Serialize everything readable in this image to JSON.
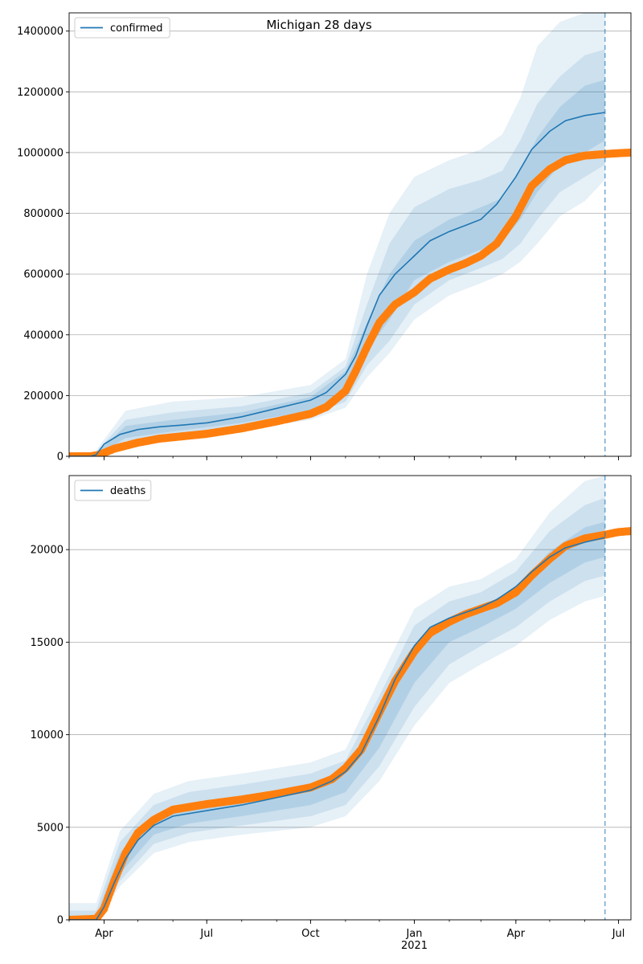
{
  "figure": {
    "title": "Michigan 28 days"
  },
  "chart_data": [
    {
      "type": "line",
      "title": "Michigan 28 days",
      "xlabel": "",
      "ylabel": "",
      "xlim": [
        "2020-03-01",
        "2021-07-12"
      ],
      "ylim": [
        0,
        1460000
      ],
      "yticks": [
        0,
        200000,
        400000,
        600000,
        800000,
        1000000,
        1200000,
        1400000
      ],
      "grid": "y",
      "legend": {
        "placement": "top-left",
        "entries": [
          "confirmed"
        ]
      },
      "forecast_start": "2021-06-19",
      "series": [
        {
          "name": "confirmed",
          "kind": "model",
          "color": "#1f77b4",
          "x": [
            "2020-03-01",
            "2020-03-20",
            "2020-03-25",
            "2020-04-01",
            "2020-04-15",
            "2020-05-01",
            "2020-05-20",
            "2020-06-10",
            "2020-07-01",
            "2020-08-01",
            "2020-09-01",
            "2020-10-01",
            "2020-10-15",
            "2020-11-01",
            "2020-11-10",
            "2020-11-20",
            "2020-12-01",
            "2020-12-15",
            "2021-01-01",
            "2021-01-15",
            "2021-02-01",
            "2021-02-15",
            "2021-03-01",
            "2021-03-15",
            "2021-04-01",
            "2021-04-15",
            "2021-05-01",
            "2021-05-15",
            "2021-06-01",
            "2021-06-19"
          ],
          "y": [
            0,
            0,
            5000,
            40000,
            72000,
            88000,
            97000,
            103000,
            110000,
            130000,
            158000,
            185000,
            210000,
            270000,
            330000,
            430000,
            530000,
            600000,
            660000,
            710000,
            740000,
            760000,
            780000,
            830000,
            920000,
            1010000,
            1070000,
            1105000,
            1122000,
            1132000
          ]
        },
        {
          "name": "observed confirmed",
          "kind": "observed",
          "color": "#ff7f0e",
          "x": [
            "2020-03-01",
            "2020-03-20",
            "2020-03-28",
            "2020-04-10",
            "2020-05-01",
            "2020-05-20",
            "2020-06-10",
            "2020-07-01",
            "2020-08-01",
            "2020-09-01",
            "2020-10-01",
            "2020-10-15",
            "2020-11-01",
            "2020-11-10",
            "2020-11-20",
            "2020-12-01",
            "2020-12-15",
            "2021-01-01",
            "2021-01-15",
            "2021-02-01",
            "2021-02-15",
            "2021-03-01",
            "2021-03-15",
            "2021-04-01",
            "2021-04-15",
            "2021-05-01",
            "2021-05-15",
            "2021-06-01",
            "2021-06-19",
            "2021-07-01",
            "2021-07-12"
          ],
          "y": [
            0,
            0,
            5000,
            25000,
            45000,
            58000,
            66000,
            74000,
            92000,
            115000,
            140000,
            162000,
            215000,
            280000,
            360000,
            440000,
            500000,
            540000,
            585000,
            615000,
            635000,
            660000,
            700000,
            790000,
            890000,
            945000,
            975000,
            990000,
            995000,
            998000,
            1000000
          ]
        }
      ],
      "bands": [
        {
          "x": [
            "2020-03-25",
            "2020-04-20",
            "2020-06-01",
            "2020-08-01",
            "2020-10-01",
            "2020-11-01",
            "2020-11-20",
            "2020-12-10",
            "2021-01-01",
            "2021-02-01",
            "2021-03-01",
            "2021-03-20",
            "2021-04-05",
            "2021-04-20",
            "2021-05-10",
            "2021-06-01",
            "2021-06-19"
          ],
          "lower": [
            0,
            40000,
            60000,
            85000,
            120000,
            160000,
            260000,
            340000,
            450000,
            530000,
            570000,
            600000,
            640000,
            700000,
            790000,
            840000,
            910000
          ],
          "upper": [
            20000,
            150000,
            180000,
            195000,
            235000,
            320000,
            600000,
            800000,
            920000,
            975000,
            1010000,
            1060000,
            1180000,
            1350000,
            1430000,
            1460000,
            1460000
          ]
        },
        {
          "x": [
            "2020-03-25",
            "2020-04-20",
            "2020-06-01",
            "2020-08-01",
            "2020-10-01",
            "2020-11-01",
            "2020-11-20",
            "2020-12-10",
            "2021-01-01",
            "2021-02-01",
            "2021-03-01",
            "2021-03-20",
            "2021-04-05",
            "2021-04-20",
            "2021-05-10",
            "2021-06-01",
            "2021-06-19"
          ],
          "lower": [
            0,
            50000,
            70000,
            95000,
            135000,
            180000,
            300000,
            380000,
            500000,
            580000,
            620000,
            650000,
            700000,
            780000,
            870000,
            920000,
            960000
          ],
          "upper": [
            15000,
            120000,
            145000,
            165000,
            210000,
            295000,
            500000,
            700000,
            820000,
            880000,
            910000,
            940000,
            1040000,
            1160000,
            1250000,
            1320000,
            1340000
          ]
        },
        {
          "x": [
            "2020-03-25",
            "2020-04-20",
            "2020-06-01",
            "2020-08-01",
            "2020-10-01",
            "2020-11-01",
            "2020-11-20",
            "2020-12-10",
            "2021-01-01",
            "2021-02-01",
            "2021-03-01",
            "2021-03-20",
            "2021-04-05",
            "2021-04-20",
            "2021-05-10",
            "2021-06-01",
            "2021-06-19"
          ],
          "lower": [
            0,
            60000,
            82000,
            110000,
            150000,
            210000,
            350000,
            450000,
            580000,
            640000,
            680000,
            710000,
            780000,
            870000,
            960000,
            1000000,
            1040000
          ],
          "upper": [
            10000,
            100000,
            120000,
            145000,
            195000,
            280000,
            440000,
            600000,
            710000,
            780000,
            820000,
            850000,
            940000,
            1050000,
            1150000,
            1220000,
            1240000
          ]
        }
      ]
    },
    {
      "type": "line",
      "title": "",
      "xlabel": "",
      "ylabel": "",
      "xlim": [
        "2020-03-01",
        "2021-07-12"
      ],
      "ylim": [
        0,
        24000
      ],
      "yticks": [
        0,
        5000,
        10000,
        15000,
        20000
      ],
      "xticks": [
        {
          "date": "2020-04-01",
          "label": "Apr"
        },
        {
          "date": "2020-07-01",
          "label": "Jul"
        },
        {
          "date": "2020-10-01",
          "label": "Oct"
        },
        {
          "date": "2021-01-01",
          "label": "Jan\n2021"
        },
        {
          "date": "2021-04-01",
          "label": "Apr"
        },
        {
          "date": "2021-07-01",
          "label": "Jul"
        }
      ],
      "grid": "y",
      "legend": {
        "placement": "top-left",
        "entries": [
          "deaths"
        ]
      },
      "forecast_start": "2021-06-19",
      "series": [
        {
          "name": "deaths",
          "kind": "model",
          "color": "#1f77b4",
          "x": [
            "2020-03-01",
            "2020-03-25",
            "2020-04-01",
            "2020-04-10",
            "2020-04-20",
            "2020-05-01",
            "2020-05-15",
            "2020-06-01",
            "2020-07-01",
            "2020-08-01",
            "2020-09-01",
            "2020-10-01",
            "2020-10-20",
            "2020-11-01",
            "2020-11-15",
            "2020-12-01",
            "2020-12-15",
            "2021-01-01",
            "2021-01-15",
            "2021-02-01",
            "2021-02-15",
            "2021-03-01",
            "2021-03-15",
            "2021-04-01",
            "2021-04-15",
            "2021-05-01",
            "2021-05-15",
            "2021-06-01",
            "2021-06-19"
          ],
          "y": [
            0,
            0,
            700,
            2000,
            3300,
            4300,
            5100,
            5600,
            5900,
            6200,
            6600,
            7000,
            7500,
            8000,
            9000,
            11000,
            13000,
            14800,
            15800,
            16300,
            16600,
            16900,
            17300,
            18000,
            18800,
            19600,
            20100,
            20400,
            20650
          ]
        },
        {
          "name": "observed deaths",
          "kind": "observed",
          "color": "#ff7f0e",
          "x": [
            "2020-03-01",
            "2020-03-25",
            "2020-04-01",
            "2020-04-10",
            "2020-04-20",
            "2020-05-01",
            "2020-05-15",
            "2020-06-01",
            "2020-07-01",
            "2020-08-01",
            "2020-09-01",
            "2020-10-01",
            "2020-10-20",
            "2020-11-01",
            "2020-11-15",
            "2020-12-01",
            "2020-12-15",
            "2021-01-01",
            "2021-01-15",
            "2021-02-01",
            "2021-02-15",
            "2021-03-01",
            "2021-03-15",
            "2021-04-01",
            "2021-04-15",
            "2021-05-01",
            "2021-05-15",
            "2021-06-01",
            "2021-06-19",
            "2021-07-01",
            "2021-07-12"
          ],
          "y": [
            0,
            50,
            600,
            2100,
            3600,
            4700,
            5400,
            5950,
            6250,
            6500,
            6800,
            7150,
            7600,
            8200,
            9200,
            11200,
            12900,
            14500,
            15500,
            16100,
            16500,
            16800,
            17100,
            17700,
            18600,
            19500,
            20200,
            20600,
            20800,
            20950,
            21000
          ]
        }
      ],
      "bands": [
        {
          "x": [
            "2020-03-01",
            "2020-03-25",
            "2020-04-15",
            "2020-05-15",
            "2020-06-15",
            "2020-08-01",
            "2020-10-01",
            "2020-11-01",
            "2020-12-01",
            "2021-01-01",
            "2021-02-01",
            "2021-03-01",
            "2021-04-01",
            "2021-05-01",
            "2021-06-01",
            "2021-06-19"
          ],
          "lower": [
            0,
            0,
            1800,
            3600,
            4200,
            4600,
            5000,
            5600,
            7500,
            10500,
            12800,
            13800,
            14800,
            16200,
            17200,
            17500
          ],
          "upper": [
            900,
            900,
            4800,
            6800,
            7500,
            7900,
            8500,
            9200,
            13000,
            16800,
            18000,
            18400,
            19500,
            22000,
            23700,
            24000
          ]
        },
        {
          "x": [
            "2020-03-01",
            "2020-03-25",
            "2020-04-15",
            "2020-05-15",
            "2020-06-15",
            "2020-08-01",
            "2020-10-01",
            "2020-11-01",
            "2020-12-01",
            "2021-01-01",
            "2021-02-01",
            "2021-03-01",
            "2021-04-01",
            "2021-05-01",
            "2021-06-01",
            "2021-06-19"
          ],
          "lower": [
            0,
            0,
            2100,
            4100,
            4700,
            5100,
            5600,
            6200,
            8300,
            11500,
            13800,
            14800,
            15800,
            17200,
            18300,
            18600
          ],
          "upper": [
            500,
            500,
            4200,
            6200,
            6900,
            7300,
            7900,
            8600,
            12100,
            15900,
            17200,
            17700,
            18800,
            21000,
            22400,
            22800
          ]
        },
        {
          "x": [
            "2020-03-01",
            "2020-03-25",
            "2020-04-15",
            "2020-05-15",
            "2020-06-15",
            "2020-08-01",
            "2020-10-01",
            "2020-11-01",
            "2020-12-01",
            "2021-01-01",
            "2021-02-01",
            "2021-03-01",
            "2021-04-01",
            "2021-05-01",
            "2021-06-01",
            "2021-06-19"
          ],
          "lower": [
            0,
            0,
            2500,
            4600,
            5200,
            5600,
            6200,
            6900,
            9300,
            12800,
            15000,
            15800,
            16800,
            18200,
            19300,
            19600
          ],
          "upper": [
            200,
            200,
            3600,
            5600,
            6200,
            6700,
            7300,
            8000,
            11000,
            14800,
            16300,
            16900,
            17900,
            19900,
            21200,
            21500
          ]
        }
      ]
    }
  ]
}
